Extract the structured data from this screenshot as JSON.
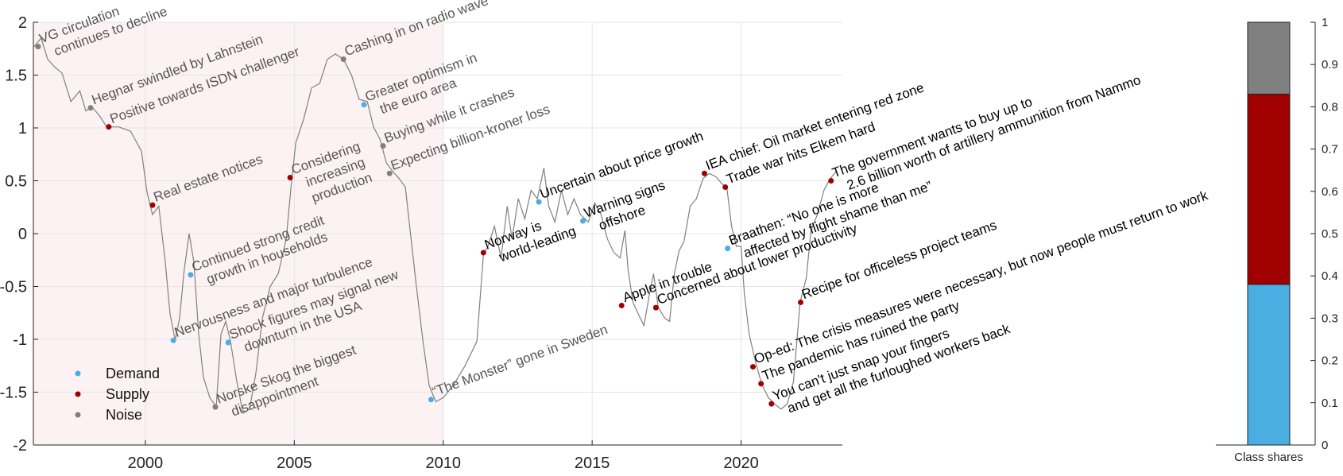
{
  "chart_data": [
    {
      "type": "line",
      "color": "#808080",
      "x": [
        1996.24,
        1996.5,
        1996.72,
        1996.98,
        1997.2,
        1997.5,
        1997.8,
        1998.0,
        1998.2,
        1998.45,
        1998.7,
        1999.1,
        1999.5,
        1999.87,
        2000.05,
        2000.24,
        2000.45,
        2000.67,
        2000.83,
        2001.0,
        2001.15,
        2001.3,
        2001.47,
        2001.63,
        2001.79,
        2001.95,
        2002.16,
        2002.38,
        2002.54,
        2002.7,
        2002.86,
        2003.07,
        2003.28,
        2003.5,
        2003.71,
        2003.93,
        2004.19,
        2004.46,
        2004.73,
        2004.89,
        2005.05,
        2005.31,
        2005.58,
        2005.85,
        2006.11,
        2006.38,
        2006.65,
        2006.92,
        2007.18,
        2007.45,
        2007.66,
        2007.88,
        2008.09,
        2008.3,
        2008.52,
        2008.73,
        2008.89,
        2009.1,
        2009.32,
        2009.53,
        2009.75,
        2010.01,
        2010.33,
        2010.73,
        2011.13,
        2011.35,
        2011.5,
        2011.72,
        2011.94,
        2012.15,
        2012.31,
        2012.52,
        2012.74,
        2012.95,
        2013.16,
        2013.38,
        2013.54,
        2013.75,
        2013.97,
        2014.18,
        2014.39,
        2014.61,
        2014.87,
        2015.09,
        2015.3,
        2015.51,
        2015.73,
        2015.94,
        2016.1,
        2016.21,
        2016.37,
        2016.58,
        2016.74,
        2016.9,
        2017.06,
        2017.22,
        2017.44,
        2017.6,
        2017.76,
        2017.92,
        2018.08,
        2018.29,
        2018.5,
        2018.72,
        2018.93,
        2019.15,
        2019.36,
        2019.52,
        2019.68,
        2019.84,
        2020.0,
        2020.11,
        2020.27,
        2020.48,
        2020.69,
        2020.91,
        2021.12,
        2021.34,
        2021.55,
        2021.76,
        2021.98,
        2022.19,
        2022.35,
        2022.56,
        2022.78,
        2022.99,
        2023.2
      ],
      "values": [
        1.76,
        1.85,
        1.65,
        1.57,
        1.52,
        1.25,
        1.35,
        1.16,
        1.2,
        1.12,
        1.01,
        1.01,
        0.97,
        0.78,
        0.4,
        0.18,
        0.26,
        -0.27,
        -0.76,
        -1.01,
        -0.8,
        -0.35,
        0,
        -0.27,
        -0.95,
        -1.36,
        -1.55,
        -1.64,
        -0.95,
        -0.83,
        -1.02,
        -1.4,
        -1.7,
        -1.66,
        -1.32,
        -0.8,
        -0.5,
        -0.38,
        -0.05,
        0.44,
        0.86,
        1.08,
        1.38,
        1.42,
        1.65,
        1.7,
        1.65,
        1.5,
        1.27,
        1.25,
        1.01,
        0.89,
        0.67,
        0.59,
        0.52,
        0.44,
        0.03,
        -0.5,
        -1.02,
        -1.44,
        -1.59,
        -1.55,
        -1.44,
        -1.25,
        -1.02,
        -0.2,
        -0.12,
        0.07,
        -0.23,
        0.26,
        -0.05,
        0.33,
        0.14,
        0.41,
        0.33,
        0.62,
        0.26,
        0.11,
        0.41,
        0.18,
        0.33,
        0.18,
        0.11,
        0.29,
        0.18,
        -0.05,
        -0.18,
        -0.23,
        0.03,
        -0.35,
        -0.65,
        -0.78,
        -0.87,
        -0.61,
        -0.38,
        -0.7,
        -0.8,
        -0.83,
        -0.38,
        -0.16,
        -0.08,
        0.26,
        0.33,
        0.52,
        0.57,
        0.54,
        0.47,
        0.44,
        0.07,
        -0.12,
        -0.12,
        -0.57,
        -0.95,
        -1.21,
        -1.42,
        -1.55,
        -1.61,
        -1.66,
        -1.61,
        -1.4,
        -0.65,
        -0.42,
        0.03,
        0.18,
        0.41,
        0.52,
        0.59
      ],
      "xlim": [
        1996.24,
        2023.4
      ],
      "ylim": [
        -2,
        2
      ],
      "xticks": [
        2000,
        2005,
        2010,
        2015,
        2020
      ],
      "yticks": [
        -2,
        -1.5,
        -1,
        -0.5,
        0,
        0.5,
        1,
        1.5,
        2
      ],
      "grid": true,
      "shaded_until": 2010,
      "shade_color": "#fdf2f3",
      "legend": "lower left",
      "classes": [
        {
          "name": "Demand",
          "color": "#4aaee3"
        },
        {
          "name": "Supply",
          "color": "#a00000"
        },
        {
          "name": "Noise",
          "color": "#808080"
        }
      ],
      "annotations": [
        {
          "x": 1996.4,
          "y": 1.77,
          "class": "Noise",
          "text": [
            "VG circulation",
            "continues to decline"
          ]
        },
        {
          "x": 1998.16,
          "y": 1.19,
          "class": "Noise",
          "text": [
            "Hegnar swindled by Lahnstein"
          ]
        },
        {
          "x": 1998.77,
          "y": 1.01,
          "class": "Supply",
          "text": [
            "Positive towards ISDN challenger"
          ]
        },
        {
          "x": 2000.24,
          "y": 0.27,
          "class": "Supply",
          "text": [
            "Real estate notices"
          ]
        },
        {
          "x": 2001.52,
          "y": -0.39,
          "class": "Demand",
          "text": [
            "Continued strong credit",
            "growth in households"
          ]
        },
        {
          "x": 2004.86,
          "y": 0.53,
          "class": "Supply",
          "text": [
            "Considering",
            "increasing",
            "production"
          ]
        },
        {
          "x": 2006.65,
          "y": 1.65,
          "class": "Noise",
          "text": [
            "Cashing in on radio wave"
          ]
        },
        {
          "x": 2007.34,
          "y": 1.22,
          "class": "Demand",
          "text": [
            "Greater optimism in",
            "the euro area"
          ]
        },
        {
          "x": 2007.98,
          "y": 0.83,
          "class": "Noise",
          "text": [
            "Buying while it crashes"
          ]
        },
        {
          "x": 2008.2,
          "y": 0.57,
          "class": "Noise",
          "text": [
            "Expecting billion-kroner loss"
          ]
        },
        {
          "x": 2000.94,
          "y": -1.01,
          "class": "Demand",
          "text": [
            "Nervousness and major turbulence"
          ]
        },
        {
          "x": 2002.78,
          "y": -1.03,
          "class": "Demand",
          "text": [
            "Shock figures may signal new",
            "downturn in the USA"
          ]
        },
        {
          "x": 2002.35,
          "y": -1.64,
          "class": "Noise",
          "text": [
            "Norske Skog the biggest",
            "disappointment"
          ]
        },
        {
          "x": 2009.59,
          "y": -1.57,
          "class": "Demand",
          "text": [
            "“The Monster” gone in Sweden"
          ]
        },
        {
          "x": 2011.35,
          "y": -0.18,
          "class": "Supply",
          "text": [
            "Norway is",
            "world-leading"
          ]
        },
        {
          "x": 2013.21,
          "y": 0.3,
          "class": "Demand",
          "text": [
            "Uncertain about price growth"
          ]
        },
        {
          "x": 2014.69,
          "y": 0.12,
          "class": "Demand",
          "text": [
            "Warning signs",
            "offshore"
          ]
        },
        {
          "x": 2015.99,
          "y": -0.68,
          "class": "Supply",
          "text": [
            "Apple in trouble"
          ]
        },
        {
          "x": 2017.14,
          "y": -0.7,
          "class": "Supply",
          "text": [
            "Concerned about lower productivity"
          ]
        },
        {
          "x": 2018.77,
          "y": 0.57,
          "class": "Supply",
          "text": [
            "IEA chief: Oil market entering red zone"
          ]
        },
        {
          "x": 2019.47,
          "y": 0.44,
          "class": "Supply",
          "text": [
            "Trade war hits Elkem hard"
          ]
        },
        {
          "x": 2019.55,
          "y": -0.14,
          "class": "Demand",
          "text": [
            "Braathen: “No one is more",
            "affected by flight shame than me”"
          ]
        },
        {
          "x": 2023.02,
          "y": 0.5,
          "class": "Supply",
          "text": [
            "The government wants to buy up to",
            "2.6 billion worth of artillery ammunition from Nammo"
          ]
        },
        {
          "x": 2022.0,
          "y": -0.65,
          "class": "Supply",
          "text": [
            "Recipe for officeless project teams"
          ]
        },
        {
          "x": 2020.4,
          "y": -1.26,
          "class": "Supply",
          "text": [
            "Op-ed: The crisis measures were necessary, but now people must return to work"
          ]
        },
        {
          "x": 2020.67,
          "y": -1.42,
          "class": "Supply",
          "text": [
            "The pandemic has ruined the party"
          ]
        },
        {
          "x": 2021.02,
          "y": -1.61,
          "class": "Supply",
          "text": [
            "You can't just snap your fingers",
            "and get all the furloughed workers back"
          ]
        }
      ]
    },
    {
      "type": "stacked_bar",
      "categories": [
        "Class shares"
      ],
      "series": [
        {
          "name": "Demand",
          "color": "#4aaee3",
          "values": [
            0.38
          ]
        },
        {
          "name": "Supply",
          "color": "#a00000",
          "values": [
            0.45
          ]
        },
        {
          "name": "Noise",
          "color": "#808080",
          "values": [
            0.17
          ]
        }
      ],
      "ylim": [
        0,
        1
      ],
      "yticks": [
        0,
        0.1,
        0.2,
        0.3,
        0.4,
        0.5,
        0.6,
        0.7,
        0.8,
        0.9,
        1
      ]
    }
  ]
}
